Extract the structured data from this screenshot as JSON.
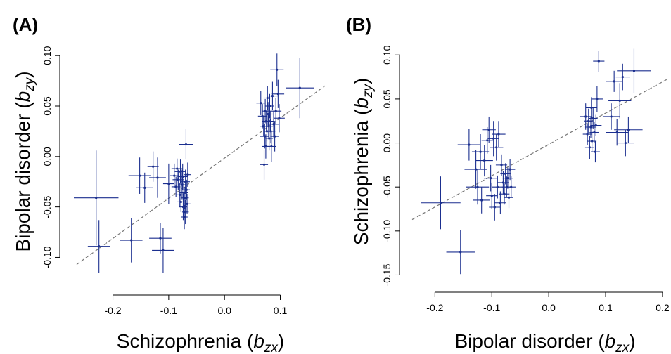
{
  "colors": {
    "points": "#1b2f8f",
    "fit_line": "#777777",
    "axis": "#000000"
  },
  "chart_data": [
    {
      "type": "scatter",
      "panel_label": "(A)",
      "xlabel": "Schizophrenia",
      "xlabel_sub": "zx",
      "ylabel": "Bipolar disorder",
      "ylabel_sub": "zy",
      "xlim": [
        -0.27,
        0.18
      ],
      "ylim": [
        -0.115,
        0.105
      ],
      "xticks": [
        -0.2,
        -0.1,
        0.0,
        0.1
      ],
      "xtick_labels": [
        "-0.2",
        "-0.1",
        "0.0",
        "0.1"
      ],
      "yticks": [
        -0.1,
        -0.05,
        0.0,
        0.05,
        0.1
      ],
      "ytick_labels": [
        "-0.10",
        "-0.05",
        "0.00",
        "0.05",
        "0.10"
      ],
      "grid": false,
      "fit_line": {
        "x": [
          -0.265,
          0.18
        ],
        "y": [
          -0.107,
          0.07
        ]
      },
      "points": [
        {
          "x": -0.23,
          "y": -0.041,
          "xerr": 0.04,
          "yerr": 0.047
        },
        {
          "x": -0.225,
          "y": -0.089,
          "xerr": 0.02,
          "yerr": 0.026
        },
        {
          "x": -0.167,
          "y": -0.083,
          "xerr": 0.02,
          "yerr": 0.022
        },
        {
          "x": -0.152,
          "y": -0.019,
          "xerr": 0.02,
          "yerr": 0.018
        },
        {
          "x": -0.143,
          "y": -0.031,
          "xerr": 0.015,
          "yerr": 0.015
        },
        {
          "x": -0.128,
          "y": -0.01,
          "xerr": 0.01,
          "yerr": 0.015
        },
        {
          "x": -0.12,
          "y": -0.021,
          "xerr": 0.015,
          "yerr": 0.02
        },
        {
          "x": -0.115,
          "y": -0.081,
          "xerr": 0.02,
          "yerr": 0.015
        },
        {
          "x": -0.11,
          "y": -0.093,
          "xerr": 0.02,
          "yerr": 0.022
        },
        {
          "x": -0.1,
          "y": -0.027,
          "xerr": 0.01,
          "yerr": 0.02
        },
        {
          "x": -0.09,
          "y": -0.019,
          "xerr": 0.008,
          "yerr": 0.012
        },
        {
          "x": -0.087,
          "y": -0.03,
          "xerr": 0.008,
          "yerr": 0.01
        },
        {
          "x": -0.085,
          "y": -0.012,
          "xerr": 0.01,
          "yerr": 0.01
        },
        {
          "x": -0.083,
          "y": -0.023,
          "xerr": 0.01,
          "yerr": 0.01
        },
        {
          "x": -0.08,
          "y": -0.038,
          "xerr": 0.008,
          "yerr": 0.012
        },
        {
          "x": -0.079,
          "y": -0.015,
          "xerr": 0.01,
          "yerr": 0.012
        },
        {
          "x": -0.078,
          "y": -0.045,
          "xerr": 0.008,
          "yerr": 0.01
        },
        {
          "x": -0.076,
          "y": -0.028,
          "xerr": 0.007,
          "yerr": 0.015
        },
        {
          "x": -0.075,
          "y": -0.02,
          "xerr": 0.009,
          "yerr": 0.013
        },
        {
          "x": -0.074,
          "y": -0.05,
          "xerr": 0.007,
          "yerr": 0.013
        },
        {
          "x": -0.073,
          "y": -0.036,
          "xerr": 0.008,
          "yerr": 0.01
        },
        {
          "x": -0.072,
          "y": -0.06,
          "xerr": 0.006,
          "yerr": 0.012
        },
        {
          "x": -0.071,
          "y": -0.041,
          "xerr": 0.007,
          "yerr": 0.011
        },
        {
          "x": -0.07,
          "y": -0.025,
          "xerr": 0.008,
          "yerr": 0.012
        },
        {
          "x": -0.07,
          "y": -0.055,
          "xerr": 0.006,
          "yerr": 0.012
        },
        {
          "x": -0.069,
          "y": 0.012,
          "xerr": 0.012,
          "yerr": 0.015
        },
        {
          "x": -0.068,
          "y": -0.033,
          "xerr": 0.006,
          "yerr": 0.01
        },
        {
          "x": -0.067,
          "y": -0.047,
          "xerr": 0.006,
          "yerr": 0.01
        },
        {
          "x": -0.066,
          "y": -0.018,
          "xerr": 0.006,
          "yerr": 0.012
        },
        {
          "x": 0.065,
          "y": 0.053,
          "xerr": 0.008,
          "yerr": 0.012
        },
        {
          "x": 0.068,
          "y": 0.04,
          "xerr": 0.008,
          "yerr": 0.012
        },
        {
          "x": 0.07,
          "y": 0.03,
          "xerr": 0.007,
          "yerr": 0.01
        },
        {
          "x": 0.071,
          "y": -0.008,
          "xerr": 0.007,
          "yerr": 0.015
        },
        {
          "x": 0.072,
          "y": 0.02,
          "xerr": 0.008,
          "yerr": 0.012
        },
        {
          "x": 0.073,
          "y": 0.045,
          "xerr": 0.006,
          "yerr": 0.012
        },
        {
          "x": 0.074,
          "y": 0.01,
          "xerr": 0.007,
          "yerr": 0.012
        },
        {
          "x": 0.075,
          "y": 0.035,
          "xerr": 0.008,
          "yerr": 0.01
        },
        {
          "x": 0.076,
          "y": 0.025,
          "xerr": 0.006,
          "yerr": 0.01
        },
        {
          "x": 0.077,
          "y": 0.058,
          "xerr": 0.007,
          "yerr": 0.012
        },
        {
          "x": 0.078,
          "y": 0.042,
          "xerr": 0.009,
          "yerr": 0.012
        },
        {
          "x": 0.079,
          "y": 0.03,
          "xerr": 0.008,
          "yerr": 0.011
        },
        {
          "x": 0.08,
          "y": 0.018,
          "xerr": 0.007,
          "yerr": 0.012
        },
        {
          "x": 0.081,
          "y": 0.05,
          "xerr": 0.008,
          "yerr": 0.012
        },
        {
          "x": 0.082,
          "y": 0.035,
          "xerr": 0.008,
          "yerr": 0.01
        },
        {
          "x": 0.083,
          "y": 0.025,
          "xerr": 0.008,
          "yerr": 0.012
        },
        {
          "x": 0.084,
          "y": 0.01,
          "xerr": 0.009,
          "yerr": 0.015
        },
        {
          "x": 0.086,
          "y": 0.06,
          "xerr": 0.01,
          "yerr": 0.014
        },
        {
          "x": 0.088,
          "y": 0.032,
          "xerr": 0.01,
          "yerr": 0.013
        },
        {
          "x": 0.09,
          "y": 0.02,
          "xerr": 0.008,
          "yerr": 0.015
        },
        {
          "x": 0.092,
          "y": 0.045,
          "xerr": 0.01,
          "yerr": 0.013
        },
        {
          "x": 0.094,
          "y": 0.086,
          "xerr": 0.012,
          "yerr": 0.016
        },
        {
          "x": 0.096,
          "y": 0.062,
          "xerr": 0.011,
          "yerr": 0.014
        },
        {
          "x": 0.098,
          "y": 0.038,
          "xerr": 0.01,
          "yerr": 0.014
        },
        {
          "x": 0.135,
          "y": 0.068,
          "xerr": 0.025,
          "yerr": 0.03
        }
      ]
    },
    {
      "type": "scatter",
      "panel_label": "(B)",
      "xlabel": "Bipolar disorder",
      "xlabel_sub": "zx",
      "ylabel": "Schizophrenia",
      "ylabel_sub": "zy",
      "xlim": [
        -0.24,
        0.21
      ],
      "ylim": [
        -0.16,
        0.105
      ],
      "xticks": [
        -0.2,
        -0.1,
        0.0,
        0.1,
        0.2
      ],
      "xtick_labels": [
        "-0.2",
        "-0.1",
        "0.0",
        "0.1",
        "0.2"
      ],
      "yticks": [
        -0.15,
        -0.1,
        -0.05,
        0.0,
        0.05,
        0.1
      ],
      "ytick_labels": [
        "-0.15",
        "-0.10",
        "-0.05",
        "0.00",
        "0.05",
        "0.10"
      ],
      "grid": false,
      "fit_line": {
        "x": [
          -0.24,
          0.21
        ],
        "y": [
          -0.087,
          0.073
        ]
      },
      "points": [
        {
          "x": -0.19,
          "y": -0.068,
          "xerr": 0.035,
          "yerr": 0.03
        },
        {
          "x": -0.155,
          "y": -0.124,
          "xerr": 0.025,
          "yerr": 0.025
        },
        {
          "x": -0.14,
          "y": -0.002,
          "xerr": 0.02,
          "yerr": 0.018
        },
        {
          "x": -0.128,
          "y": -0.03,
          "xerr": 0.02,
          "yerr": 0.022
        },
        {
          "x": -0.125,
          "y": -0.05,
          "xerr": 0.02,
          "yerr": 0.02
        },
        {
          "x": -0.12,
          "y": -0.01,
          "xerr": 0.015,
          "yerr": 0.02
        },
        {
          "x": -0.118,
          "y": -0.065,
          "xerr": 0.015,
          "yerr": 0.015
        },
        {
          "x": -0.113,
          "y": -0.02,
          "xerr": 0.015,
          "yerr": 0.018
        },
        {
          "x": -0.108,
          "y": 0.003,
          "xerr": 0.01,
          "yerr": 0.015
        },
        {
          "x": -0.105,
          "y": 0.015,
          "xerr": 0.012,
          "yerr": 0.015
        },
        {
          "x": -0.102,
          "y": -0.04,
          "xerr": 0.012,
          "yerr": 0.015
        },
        {
          "x": -0.1,
          "y": -0.06,
          "xerr": 0.01,
          "yerr": 0.015
        },
        {
          "x": -0.097,
          "y": 0.005,
          "xerr": 0.01,
          "yerr": 0.02
        },
        {
          "x": -0.095,
          "y": -0.073,
          "xerr": 0.01,
          "yerr": 0.015
        },
        {
          "x": -0.092,
          "y": -0.005,
          "xerr": 0.012,
          "yerr": 0.015
        },
        {
          "x": -0.09,
          "y": -0.05,
          "xerr": 0.01,
          "yerr": 0.013
        },
        {
          "x": -0.088,
          "y": 0.01,
          "xerr": 0.012,
          "yerr": 0.015
        },
        {
          "x": -0.085,
          "y": -0.068,
          "xerr": 0.01,
          "yerr": 0.013
        },
        {
          "x": -0.083,
          "y": -0.025,
          "xerr": 0.01,
          "yerr": 0.012
        },
        {
          "x": -0.08,
          "y": -0.045,
          "xerr": 0.01,
          "yerr": 0.013
        },
        {
          "x": -0.078,
          "y": -0.058,
          "xerr": 0.009,
          "yerr": 0.012
        },
        {
          "x": -0.076,
          "y": -0.035,
          "xerr": 0.009,
          "yerr": 0.012
        },
        {
          "x": -0.074,
          "y": -0.05,
          "xerr": 0.008,
          "yerr": 0.012
        },
        {
          "x": -0.072,
          "y": -0.04,
          "xerr": 0.009,
          "yerr": 0.012
        },
        {
          "x": -0.07,
          "y": -0.062,
          "xerr": 0.008,
          "yerr": 0.012
        },
        {
          "x": -0.068,
          "y": -0.03,
          "xerr": 0.009,
          "yerr": 0.012
        },
        {
          "x": -0.066,
          "y": -0.05,
          "xerr": 0.008,
          "yerr": 0.012
        },
        {
          "x": 0.065,
          "y": 0.03,
          "xerr": 0.01,
          "yerr": 0.015
        },
        {
          "x": 0.068,
          "y": 0.01,
          "xerr": 0.008,
          "yerr": 0.012
        },
        {
          "x": 0.07,
          "y": 0.025,
          "xerr": 0.008,
          "yerr": 0.014
        },
        {
          "x": 0.072,
          "y": -0.005,
          "xerr": 0.008,
          "yerr": 0.013
        },
        {
          "x": 0.074,
          "y": 0.018,
          "xerr": 0.01,
          "yerr": 0.012
        },
        {
          "x": 0.075,
          "y": 0.04,
          "xerr": 0.01,
          "yerr": 0.012
        },
        {
          "x": 0.076,
          "y": 0.002,
          "xerr": 0.008,
          "yerr": 0.012
        },
        {
          "x": 0.078,
          "y": 0.028,
          "xerr": 0.008,
          "yerr": 0.012
        },
        {
          "x": 0.08,
          "y": 0.012,
          "xerr": 0.008,
          "yerr": 0.012
        },
        {
          "x": 0.082,
          "y": -0.01,
          "xerr": 0.008,
          "yerr": 0.012
        },
        {
          "x": 0.083,
          "y": 0.02,
          "xerr": 0.01,
          "yerr": 0.012
        },
        {
          "x": 0.085,
          "y": 0.05,
          "xerr": 0.01,
          "yerr": 0.015
        },
        {
          "x": 0.088,
          "y": 0.093,
          "xerr": 0.01,
          "yerr": 0.012
        },
        {
          "x": 0.11,
          "y": 0.03,
          "xerr": 0.015,
          "yerr": 0.015
        },
        {
          "x": 0.115,
          "y": 0.07,
          "xerr": 0.015,
          "yerr": 0.012
        },
        {
          "x": 0.12,
          "y": 0.012,
          "xerr": 0.02,
          "yerr": 0.015
        },
        {
          "x": 0.125,
          "y": 0.048,
          "xerr": 0.02,
          "yerr": 0.02
        },
        {
          "x": 0.13,
          "y": 0.075,
          "xerr": 0.012,
          "yerr": 0.015
        },
        {
          "x": 0.135,
          "y": 0.0,
          "xerr": 0.015,
          "yerr": 0.015
        },
        {
          "x": 0.14,
          "y": 0.015,
          "xerr": 0.025,
          "yerr": 0.015
        },
        {
          "x": 0.15,
          "y": 0.082,
          "xerr": 0.03,
          "yerr": 0.025
        }
      ]
    }
  ]
}
